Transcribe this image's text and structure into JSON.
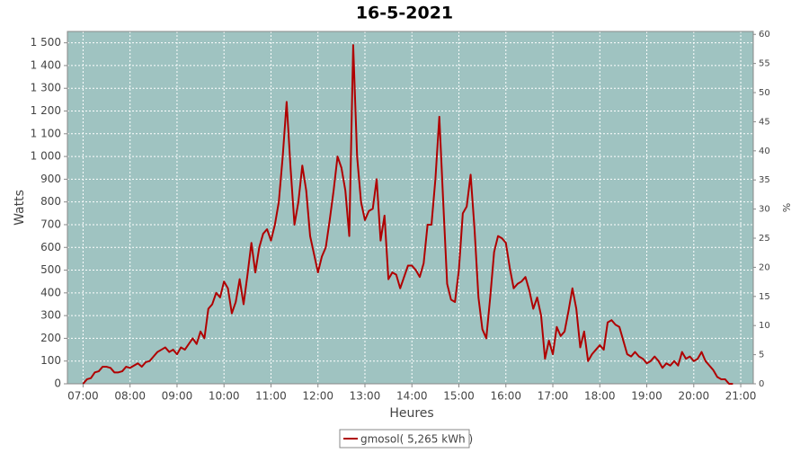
{
  "chart_data": {
    "type": "line",
    "title": "16-5-2021",
    "xlabel": "Heures",
    "ylabel": "Watts",
    "y2label": "%",
    "x": [
      "07:00",
      "07:05",
      "07:10",
      "07:15",
      "07:20",
      "07:25",
      "07:30",
      "07:35",
      "07:40",
      "07:45",
      "07:50",
      "07:55",
      "08:00",
      "08:05",
      "08:10",
      "08:15",
      "08:20",
      "08:25",
      "08:30",
      "08:35",
      "08:40",
      "08:45",
      "08:50",
      "08:55",
      "09:00",
      "09:05",
      "09:10",
      "09:15",
      "09:20",
      "09:25",
      "09:30",
      "09:35",
      "09:40",
      "09:45",
      "09:50",
      "09:55",
      "10:00",
      "10:05",
      "10:10",
      "10:15",
      "10:20",
      "10:25",
      "10:30",
      "10:35",
      "10:40",
      "10:45",
      "10:50",
      "10:55",
      "11:00",
      "11:05",
      "11:10",
      "11:15",
      "11:20",
      "11:25",
      "11:30",
      "11:35",
      "11:40",
      "11:45",
      "11:50",
      "11:55",
      "12:00",
      "12:05",
      "12:10",
      "12:15",
      "12:20",
      "12:25",
      "12:30",
      "12:35",
      "12:40",
      "12:45",
      "12:50",
      "12:55",
      "13:00",
      "13:05",
      "13:10",
      "13:15",
      "13:20",
      "13:25",
      "13:30",
      "13:35",
      "13:40",
      "13:45",
      "13:50",
      "13:55",
      "14:00",
      "14:05",
      "14:10",
      "14:15",
      "14:20",
      "14:25",
      "14:30",
      "14:35",
      "14:40",
      "14:45",
      "14:50",
      "14:55",
      "15:00",
      "15:05",
      "15:10",
      "15:15",
      "15:20",
      "15:25",
      "15:30",
      "15:35",
      "15:40",
      "15:45",
      "15:50",
      "15:55",
      "16:00",
      "16:05",
      "16:10",
      "16:15",
      "16:20",
      "16:25",
      "16:30",
      "16:35",
      "16:40",
      "16:45",
      "16:50",
      "16:55",
      "17:00",
      "17:05",
      "17:10",
      "17:15",
      "17:20",
      "17:25",
      "17:30",
      "17:35",
      "17:40",
      "17:45",
      "17:50",
      "17:55",
      "18:00",
      "18:05",
      "18:10",
      "18:15",
      "18:20",
      "18:25",
      "18:30",
      "18:35",
      "18:40",
      "18:45",
      "18:50",
      "18:55",
      "19:00",
      "19:05",
      "19:10",
      "19:15",
      "19:20",
      "19:25",
      "19:30",
      "19:35",
      "19:40",
      "19:45",
      "19:50",
      "19:55",
      "20:00",
      "20:05",
      "20:10",
      "20:15",
      "20:20",
      "20:25",
      "20:30",
      "20:35",
      "20:40",
      "20:45",
      "20:50"
    ],
    "series": [
      {
        "name": "gmosol( 5,265 kWh )",
        "color": "#b00000",
        "values": [
          0,
          20,
          25,
          50,
          55,
          75,
          75,
          70,
          50,
          50,
          55,
          75,
          70,
          80,
          90,
          75,
          95,
          100,
          120,
          140,
          150,
          160,
          140,
          150,
          130,
          160,
          150,
          175,
          200,
          175,
          230,
          200,
          330,
          350,
          400,
          380,
          450,
          420,
          310,
          360,
          460,
          350,
          480,
          620,
          490,
          600,
          660,
          680,
          630,
          700,
          800,
          1000,
          1240,
          950,
          700,
          800,
          960,
          850,
          650,
          570,
          490,
          560,
          600,
          720,
          850,
          1000,
          950,
          850,
          650,
          1490,
          1000,
          800,
          720,
          760,
          770,
          900,
          630,
          740,
          460,
          490,
          480,
          420,
          470,
          520,
          520,
          500,
          470,
          530,
          700,
          700,
          900,
          1175,
          800,
          440,
          370,
          360,
          500,
          750,
          780,
          920,
          680,
          380,
          240,
          200,
          380,
          580,
          650,
          640,
          620,
          510,
          420,
          440,
          450,
          470,
          410,
          330,
          380,
          300,
          110,
          190,
          130,
          250,
          210,
          230,
          320,
          420,
          330,
          160,
          230,
          100,
          130,
          150,
          170,
          150,
          270,
          280,
          260,
          250,
          190,
          130,
          120,
          140,
          120,
          110,
          90,
          100,
          120,
          100,
          70,
          90,
          80,
          100,
          80,
          140,
          110,
          120,
          100,
          110,
          140,
          100,
          80,
          60,
          30,
          20,
          20,
          0,
          0
        ]
      }
    ],
    "xlim": [
      "06:40",
      "21:16"
    ],
    "xticks": [
      "07:00",
      "08:00",
      "09:00",
      "10:00",
      "11:00",
      "12:00",
      "13:00",
      "14:00",
      "15:00",
      "16:00",
      "17:00",
      "18:00",
      "19:00",
      "20:00",
      "21:00"
    ],
    "ylim": [
      0,
      1550
    ],
    "yticks": [
      0,
      100,
      200,
      300,
      400,
      500,
      600,
      700,
      800,
      900,
      {
        "value": 1000,
        "label": "1 000"
      },
      {
        "value": 1100,
        "label": "1 100"
      },
      {
        "value": 1200,
        "label": "1 200"
      },
      {
        "value": 1300,
        "label": "1 300"
      },
      {
        "value": 1400,
        "label": "1 400"
      },
      {
        "value": 1500,
        "label": "1 500"
      }
    ],
    "y2lim": [
      0,
      60.5
    ],
    "y2ticks": [
      0,
      5,
      10,
      15,
      20,
      25,
      30,
      35,
      40,
      45,
      50,
      55,
      60
    ],
    "grid": true
  }
}
